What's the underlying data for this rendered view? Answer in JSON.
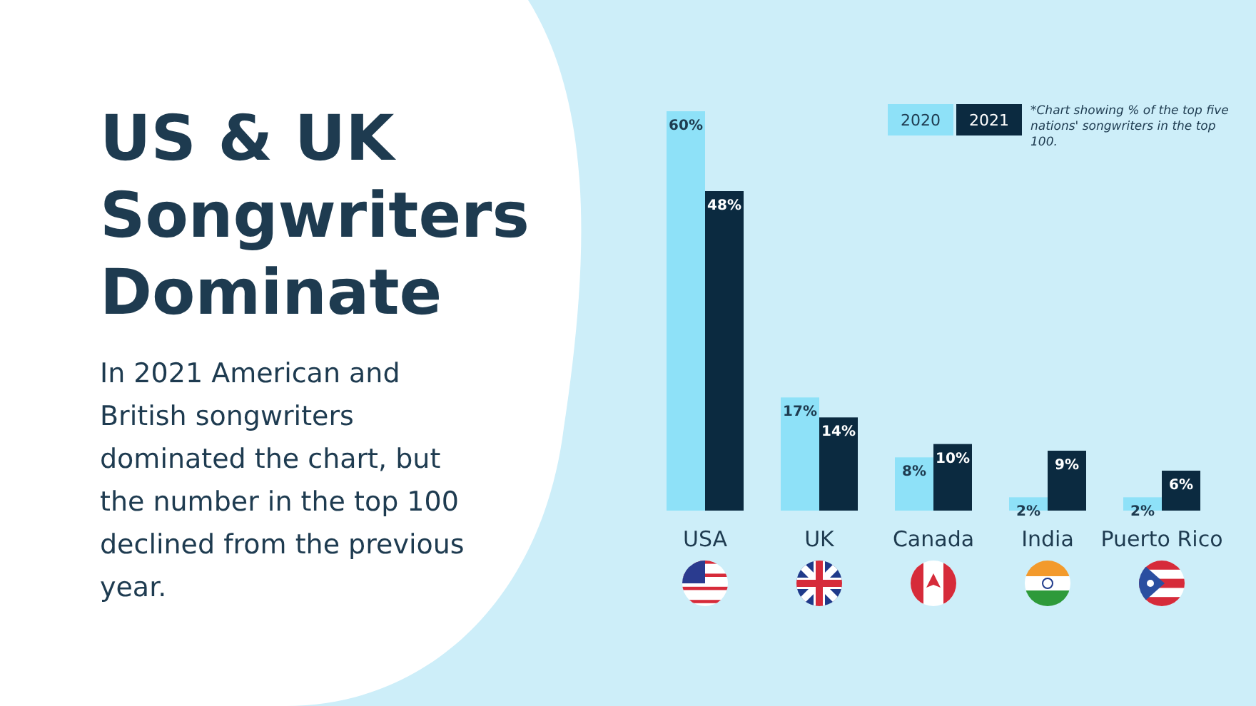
{
  "chart_data": {
    "type": "bar",
    "title": "US & UK Songwriters Dominate",
    "subtitle": "In 2021 American and British songwriters dominated the chart, but the number in the top 100 declined from the previous year.",
    "categories": [
      "USA",
      "UK",
      "Canada",
      "India",
      "Puerto Rico"
    ],
    "series": [
      {
        "name": "2020",
        "color": "#8ee1f8",
        "values": [
          60,
          17,
          8,
          2,
          2
        ],
        "value_labels": [
          "60%",
          "17%",
          "8%",
          "2%",
          "2%"
        ]
      },
      {
        "name": "2021",
        "color": "#0b2a40",
        "values": [
          48,
          14,
          10,
          9,
          6
        ],
        "value_labels": [
          "48%",
          "14%",
          "10%",
          "9%",
          "6%"
        ]
      }
    ],
    "annotations": [
      "*Chart showing % of the top five nations' songwriters in the top 100."
    ],
    "legend": "top right"
  }
}
